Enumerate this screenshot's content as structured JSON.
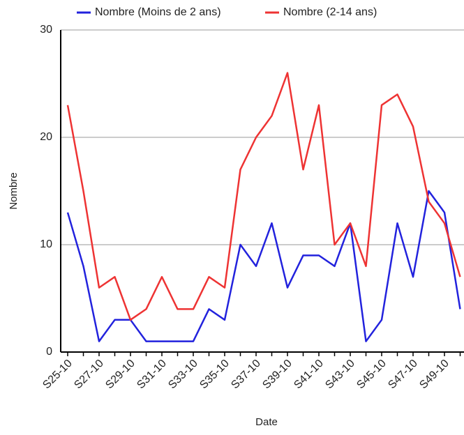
{
  "chart_data": {
    "type": "line",
    "x_label": "Date",
    "y_label": "Nombre",
    "categories": [
      "S25-10",
      null,
      "S27-10",
      null,
      "S29-10",
      null,
      "S31-10",
      null,
      "S33-10",
      null,
      "S35-10",
      null,
      "S37-10",
      null,
      "S39-10",
      null,
      "S41-10",
      null,
      "S43-10",
      null,
      "S45-10",
      null,
      "S47-10",
      null,
      "S49-10",
      null
    ],
    "series": [
      {
        "name": "Nombre (Moins de 2 ans)",
        "color": "#2222dd",
        "values": [
          13,
          8,
          1,
          3,
          3,
          1,
          1,
          1,
          1,
          4,
          3,
          10,
          8,
          12,
          6,
          9,
          9,
          8,
          12,
          1,
          3,
          12,
          7,
          15,
          13,
          4
        ]
      },
      {
        "name": "Nombre (2-14 ans)",
        "color": "#ee3333",
        "values": [
          23,
          15,
          6,
          7,
          3,
          4,
          7,
          4,
          4,
          7,
          6,
          17,
          20,
          22,
          26,
          17,
          23,
          10,
          12,
          8,
          23,
          24,
          21,
          14,
          12,
          7
        ]
      }
    ],
    "ylim": [
      0,
      30
    ],
    "yticks": [
      0,
      10,
      20,
      30
    ],
    "grid": true,
    "legend": "top"
  }
}
